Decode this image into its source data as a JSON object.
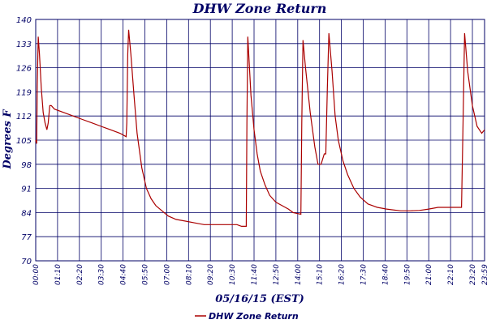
{
  "chart_data": {
    "type": "line",
    "title": "DHW Zone Return",
    "xlabel": "05/16/15 (EST)",
    "ylabel": "Degrees F",
    "ylim": [
      70,
      140
    ],
    "yticks": [
      70,
      77,
      84,
      91,
      98,
      105,
      112,
      119,
      126,
      133,
      140
    ],
    "xlim": [
      "00:00",
      "23:59"
    ],
    "xticks": [
      "00:00",
      "01:10",
      "02:20",
      "03:30",
      "04:40",
      "05:50",
      "07:00",
      "08:10",
      "09:20",
      "10:30",
      "11:40",
      "12:50",
      "14:00",
      "15:10",
      "16:20",
      "17:30",
      "18:40",
      "19:50",
      "21:00",
      "22:10",
      "23:20",
      "23:59"
    ],
    "grid": true,
    "legend_position": "bottom-left",
    "colors": {
      "line": "#aa0000",
      "grid": "#000066",
      "text": "#000066"
    },
    "series": [
      {
        "name": "DHW Zone Return",
        "points": [
          [
            "00:00",
            105
          ],
          [
            "00:03",
            104
          ],
          [
            "00:05",
            121
          ],
          [
            "00:08",
            135
          ],
          [
            "00:12",
            130
          ],
          [
            "00:18",
            120
          ],
          [
            "00:24",
            113
          ],
          [
            "00:30",
            110
          ],
          [
            "00:36",
            108
          ],
          [
            "00:40",
            110
          ],
          [
            "00:45",
            115
          ],
          [
            "00:50",
            115
          ],
          [
            "01:00",
            114
          ],
          [
            "01:30",
            113
          ],
          [
            "02:00",
            112
          ],
          [
            "02:30",
            111
          ],
          [
            "03:00",
            110
          ],
          [
            "03:30",
            109
          ],
          [
            "04:00",
            108
          ],
          [
            "04:30",
            107
          ],
          [
            "04:50",
            106
          ],
          [
            "04:52",
            110
          ],
          [
            "04:55",
            130
          ],
          [
            "04:58",
            137
          ],
          [
            "05:05",
            130
          ],
          [
            "05:15",
            118
          ],
          [
            "05:25",
            107
          ],
          [
            "05:40",
            97
          ],
          [
            "05:55",
            91
          ],
          [
            "06:10",
            88
          ],
          [
            "06:25",
            86
          ],
          [
            "06:45",
            84.5
          ],
          [
            "07:05",
            83
          ],
          [
            "07:30",
            82
          ],
          [
            "08:00",
            81.5
          ],
          [
            "08:30",
            81
          ],
          [
            "09:00",
            80.5
          ],
          [
            "10:00",
            80.5
          ],
          [
            "10:45",
            80.5
          ],
          [
            "11:00",
            80
          ],
          [
            "11:15",
            80
          ],
          [
            "11:17",
            110
          ],
          [
            "11:20",
            135
          ],
          [
            "11:24",
            128
          ],
          [
            "11:30",
            118
          ],
          [
            "11:40",
            108
          ],
          [
            "11:50",
            101
          ],
          [
            "12:00",
            96
          ],
          [
            "12:15",
            92
          ],
          [
            "12:30",
            89
          ],
          [
            "12:50",
            87
          ],
          [
            "13:10",
            86
          ],
          [
            "13:30",
            85
          ],
          [
            "13:45",
            84
          ],
          [
            "14:10",
            83.5
          ],
          [
            "14:13",
            110
          ],
          [
            "14:17",
            134
          ],
          [
            "14:25",
            126
          ],
          [
            "14:40",
            113
          ],
          [
            "14:55",
            103
          ],
          [
            "15:05",
            98
          ],
          [
            "15:15",
            98
          ],
          [
            "15:25",
            101
          ],
          [
            "15:30",
            101
          ],
          [
            "15:35",
            120
          ],
          [
            "15:40",
            136
          ],
          [
            "15:50",
            125
          ],
          [
            "16:00",
            112
          ],
          [
            "16:10",
            105
          ],
          [
            "16:25",
            99
          ],
          [
            "16:40",
            95
          ],
          [
            "17:00",
            91
          ],
          [
            "17:20",
            88.5
          ],
          [
            "17:45",
            86.5
          ],
          [
            "18:15",
            85.5
          ],
          [
            "18:45",
            85
          ],
          [
            "19:30",
            84.5
          ],
          [
            "20:00",
            84.5
          ],
          [
            "20:30",
            84.6
          ],
          [
            "21:00",
            85
          ],
          [
            "21:30",
            85.5
          ],
          [
            "22:00",
            85.5
          ],
          [
            "22:45",
            85.5
          ],
          [
            "22:50",
            110
          ],
          [
            "22:55",
            136
          ],
          [
            "23:05",
            125
          ],
          [
            "23:20",
            115
          ],
          [
            "23:35",
            109
          ],
          [
            "23:50",
            107
          ],
          [
            "23:59",
            108
          ]
        ]
      }
    ]
  }
}
